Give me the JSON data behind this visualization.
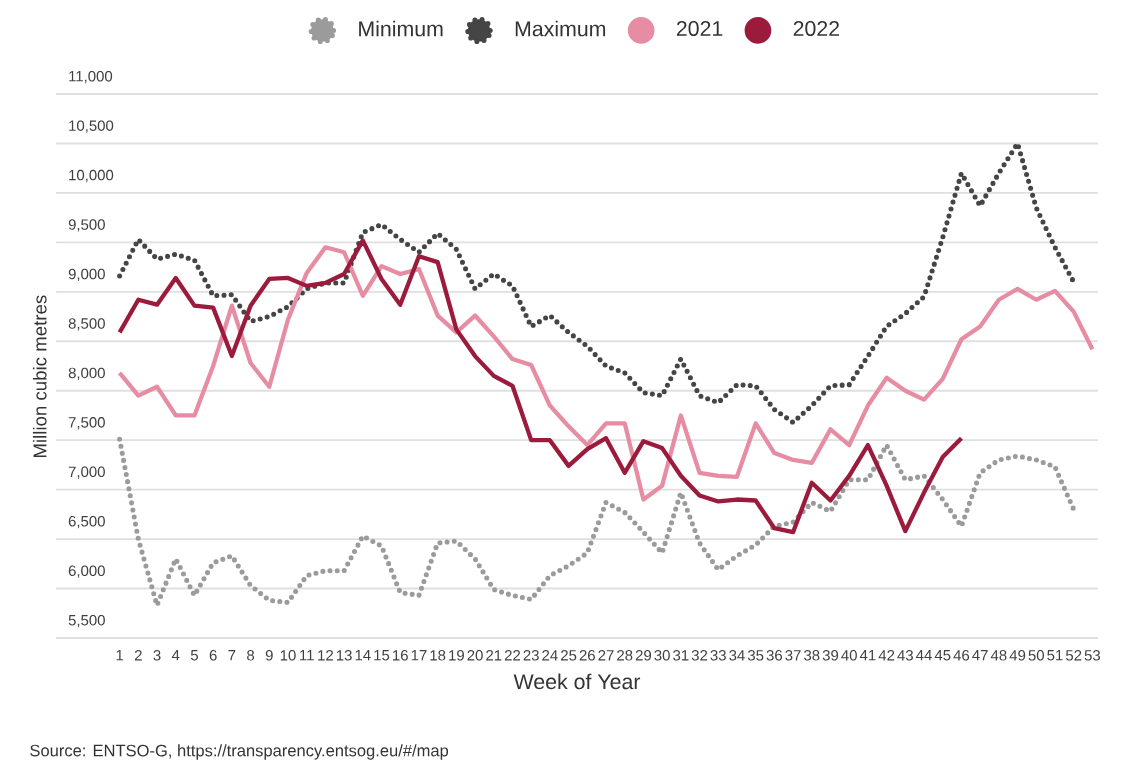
{
  "chart_data": {
    "type": "line",
    "xlabel": "Week of Year",
    "ylabel": "Million cubic metres",
    "categories": [
      "1",
      "2",
      "3",
      "4",
      "5",
      "6",
      "7",
      "8",
      "9",
      "10",
      "11",
      "12",
      "13",
      "14",
      "15",
      "16",
      "17",
      "18",
      "19",
      "20",
      "21",
      "22",
      "23",
      "24",
      "25",
      "26",
      "27",
      "28",
      "29",
      "30",
      "31",
      "32",
      "33",
      "34",
      "35",
      "36",
      "37",
      "38",
      "39",
      "40",
      "41",
      "42",
      "43",
      "44",
      "45",
      "46",
      "47",
      "48",
      "49",
      "50",
      "51",
      "52",
      "53"
    ],
    "series": [
      {
        "name": "Minimum",
        "color": "#9b9b9b",
        "line_style": "dotted",
        "values": [
          7510,
          6500,
          5830,
          6300,
          5930,
          6260,
          6330,
          6030,
          5880,
          5860,
          6130,
          6180,
          6180,
          6530,
          6430,
          5960,
          5930,
          6460,
          6480,
          6300,
          5990,
          5930,
          5890,
          6130,
          6230,
          6360,
          6870,
          6770,
          6570,
          6360,
          6970,
          6460,
          6190,
          6330,
          6440,
          6630,
          6670,
          6870,
          6780,
          7100,
          7100,
          7450,
          7100,
          7140,
          6900,
          6630,
          7170,
          7300,
          7340,
          7300,
          7230,
          6800,
          null
        ]
      },
      {
        "name": "Maximum",
        "color": "#454545",
        "line_style": "dotted",
        "values": [
          9160,
          9530,
          9330,
          9380,
          9320,
          8960,
          8970,
          8700,
          8750,
          8850,
          9030,
          9090,
          9090,
          9600,
          9680,
          9530,
          9400,
          9590,
          9430,
          9030,
          9180,
          9060,
          8650,
          8760,
          8590,
          8450,
          8250,
          8180,
          7980,
          7950,
          8320,
          7950,
          7880,
          8060,
          8050,
          7810,
          7680,
          7850,
          8050,
          8060,
          8350,
          8650,
          8780,
          8950,
          9550,
          10200,
          9870,
          10200,
          10500,
          9850,
          9450,
          9100,
          null
        ]
      },
      {
        "name": "2021",
        "color": "#e68ca3",
        "line_style": "solid",
        "values": [
          8180,
          7950,
          8040,
          7750,
          7750,
          8250,
          8860,
          8280,
          8040,
          8720,
          9190,
          9450,
          9400,
          8960,
          9260,
          9180,
          9230,
          8760,
          8590,
          8760,
          8550,
          8320,
          8260,
          7850,
          7640,
          7450,
          7670,
          7670,
          6900,
          7040,
          7750,
          7170,
          7140,
          7130,
          7670,
          7370,
          7300,
          7270,
          7610,
          7450,
          7850,
          8130,
          8000,
          7910,
          8120,
          8520,
          8650,
          8920,
          9030,
          8920,
          9010,
          8800,
          8420
        ]
      },
      {
        "name": "2022",
        "color": "#9b1b3c",
        "line_style": "solid",
        "values": [
          8590,
          8920,
          8870,
          9140,
          8860,
          8840,
          8350,
          8860,
          9130,
          9140,
          9060,
          9090,
          9180,
          9520,
          9130,
          8870,
          9360,
          9300,
          8620,
          8350,
          8150,
          8050,
          7500,
          7500,
          7240,
          7410,
          7520,
          7170,
          7490,
          7420,
          7140,
          6940,
          6880,
          6900,
          6890,
          6610,
          6570,
          7070,
          6890,
          7140,
          7450,
          7040,
          6580,
          6970,
          7330,
          7520,
          null,
          null,
          null,
          null,
          null,
          null,
          null
        ]
      }
    ],
    "ylim": [
      5500,
      11000
    ],
    "yticks": [
      {
        "value": 5500,
        "label": "5,500"
      },
      {
        "value": 6000,
        "label": "6,000"
      },
      {
        "value": 6500,
        "label": "6,500"
      },
      {
        "value": 7000,
        "label": "7,000"
      },
      {
        "value": 7500,
        "label": "7,500"
      },
      {
        "value": 8000,
        "label": "8,000"
      },
      {
        "value": 8500,
        "label": "8,500"
      },
      {
        "value": 9000,
        "label": "9,000"
      },
      {
        "value": 9500,
        "label": "9,500"
      },
      {
        "value": 10000,
        "label": "10,000"
      },
      {
        "value": 10500,
        "label": "10,500"
      },
      {
        "value": 11000,
        "label": "11,000"
      }
    ],
    "grid": "y",
    "legend": "top",
    "annotations": [
      "Source: ENTSO-G, https://transparency.entsog.eu/#/map"
    ]
  }
}
